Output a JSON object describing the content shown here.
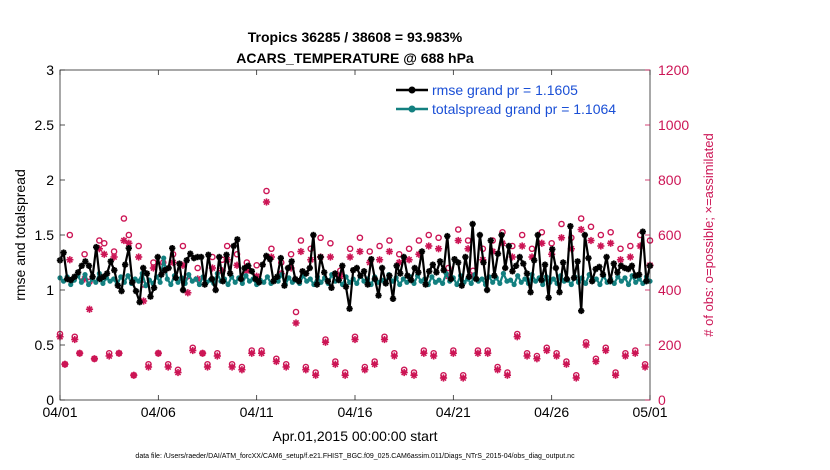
{
  "chart_data": {
    "type": "line",
    "title": "Tropics 36285 / 38608 = 93.983%",
    "subtitle": "ACARS_TEMPERATURE @ 688 hPa",
    "xlabel": "Apr.01,2015 00:00:00 start",
    "ylabel_left": "rmse and totalspread",
    "ylabel_right": "# of obs: o=possible; ×=assimilated",
    "x_range": [
      0,
      30
    ],
    "x_ticks": [
      0,
      5,
      10,
      15,
      20,
      25,
      30
    ],
    "x_tick_labels": [
      "04/01",
      "04/06",
      "04/11",
      "04/16",
      "04/21",
      "04/26",
      "05/01"
    ],
    "ylim_left": [
      0,
      3
    ],
    "y_ticks_left": [
      0,
      0.5,
      1,
      1.5,
      2,
      2.5,
      3
    ],
    "y_tick_labels_left": [
      "0",
      "0.5",
      "1",
      "1.5",
      "2",
      "2.5",
      "3"
    ],
    "ylim_right": [
      0,
      1200
    ],
    "y_ticks_right": [
      0,
      200,
      400,
      600,
      800,
      1000,
      1200
    ],
    "y_tick_labels_right": [
      "0",
      "200",
      "400",
      "600",
      "800",
      "1000",
      "1200"
    ],
    "footer": "data file: /Users/raeder/DAI/ATM_forcXX/CAM6_setup/f.e21.FHIST_BGC.f09_025.CAM6assim.011/Diags_NTrS_2015-04/obs_diag_output.nc",
    "colors": {
      "rmse": "#000000",
      "spread": "#138080",
      "obs": "#cc1555",
      "legend_text": "#1a4fd6"
    },
    "series": [
      {
        "name": "rmse grand pr = 1.1605",
        "axis": "left",
        "color": "#000000",
        "marker": "asterisk",
        "values": [
          1.27,
          1.34,
          1.1,
          1.09,
          1.12,
          1.16,
          1.22,
          1.26,
          1.22,
          1.12,
          1.39,
          1.1,
          1.12,
          1.15,
          1.26,
          1.18,
          1.04,
          0.99,
          1.23,
          1.38,
          1.07,
          0.99,
          0.89,
          1.2,
          1.15,
          0.94,
          1.02,
          1.3,
          1.14,
          1.18,
          1.2,
          1.38,
          1.11,
          1.24,
          1.0,
          1.27,
          1.33,
          1.29,
          1.3,
          1.3,
          1.05,
          1.32,
          1.1,
          1.0,
          1.3,
          1.08,
          1.32,
          1.15,
          1.4,
          1.46,
          1.1,
          1.2,
          1.22,
          1.17,
          1.1,
          1.07,
          1.23,
          1.31,
          1.28,
          1.08,
          1.12,
          1.29,
          1.04,
          1.2,
          1.26,
          1.1,
          1.08,
          1.17,
          1.15,
          1.2,
          1.5,
          1.05,
          1.3,
          1.16,
          1.08,
          1.02,
          1.15,
          1.09,
          1.22,
          1.03,
          0.83,
          1.18,
          1.2,
          1.13,
          1.17,
          1.05,
          1.28,
          1.1,
          0.95,
          1.2,
          1.06,
          1.13,
          0.92,
          1.22,
          1.15,
          1.3,
          1.13,
          1.09,
          1.2,
          1.16,
          1.35,
          1.05,
          1.17,
          1.23,
          1.16,
          1.26,
          1.18,
          1.49,
          1.1,
          1.28,
          1.25,
          1.04,
          1.3,
          1.12,
          1.6,
          1.1,
          1.5,
          1.25,
          1.0,
          1.45,
          1.13,
          1.33,
          1.5,
          1.2,
          1.4,
          1.17,
          1.22,
          1.3,
          1.24,
          1.15,
          0.98,
          1.27,
          1.5,
          1.09,
          1.23,
          0.93,
          1.37,
          1.2,
          0.98,
          1.25,
          1.1,
          1.58,
          1.11,
          1.26,
          0.81,
          1.5,
          1.29,
          1.08,
          1.19,
          1.21,
          1.14,
          1.3,
          1.08,
          1.24,
          1.16,
          1.22,
          1.2,
          1.19,
          1.22,
          1.13,
          1.14,
          1.53,
          1.08,
          1.22
        ]
      },
      {
        "name": "totalspread grand pr = 1.1064",
        "axis": "left",
        "color": "#138080",
        "marker": "dot",
        "values": [
          1.11,
          1.08,
          1.12,
          1.05,
          1.09,
          1.13,
          1.07,
          1.14,
          1.05,
          1.1,
          1.07,
          1.15,
          1.06,
          1.11,
          1.08,
          1.1,
          1.05,
          1.12,
          1.07,
          1.13,
          1.06,
          1.1,
          1.08,
          1.15,
          1.04,
          1.09,
          1.06,
          1.12,
          1.07,
          1.29,
          1.1,
          1.05,
          1.13,
          1.07,
          1.11,
          1.06,
          1.14,
          1.08,
          1.1,
          1.05,
          1.12,
          1.07,
          1.09,
          1.06,
          1.15,
          1.08,
          1.1,
          1.05,
          1.12,
          1.07,
          1.11,
          1.06,
          1.13,
          1.08,
          1.1,
          1.05,
          1.09,
          1.07,
          1.12,
          1.06,
          1.1,
          1.08,
          1.14,
          1.05,
          1.11,
          1.07,
          1.09,
          1.06,
          1.13,
          1.08,
          1.1,
          1.05,
          1.12,
          1.07,
          1.11,
          1.06,
          1.14,
          1.08,
          1.09,
          1.05,
          1.12,
          1.07,
          1.1,
          1.06,
          1.13,
          1.08,
          1.1,
          1.05,
          1.12,
          1.07,
          1.09,
          1.06,
          1.14,
          1.08,
          1.11,
          1.05,
          1.1,
          1.07,
          1.12,
          1.06,
          1.13,
          1.08,
          1.1,
          1.05,
          1.12,
          1.07,
          1.09,
          1.06,
          1.15,
          1.08,
          1.11,
          1.05,
          1.13,
          1.07,
          1.1,
          1.06,
          1.14,
          1.08,
          1.1,
          1.05,
          1.12,
          1.07,
          1.11,
          1.06,
          1.15,
          1.08,
          1.09,
          1.05,
          1.13,
          1.07,
          1.1,
          1.06,
          1.14,
          1.08,
          1.11,
          1.05,
          1.12,
          1.07,
          1.1,
          1.06,
          1.13,
          1.08,
          1.09,
          1.05,
          1.12,
          1.07,
          1.11,
          1.06,
          1.14,
          1.08,
          1.1,
          1.05,
          1.13,
          1.07,
          1.1,
          1.06,
          1.12,
          1.08,
          1.11,
          1.05,
          1.13,
          1.07,
          1.1,
          1.06,
          1.12,
          1.08
        ]
      },
      {
        "name": "obs possible",
        "axis": "right",
        "color": "#cc1555",
        "marker": "circle",
        "x": [
          0,
          0.25,
          0.5,
          0.75,
          1,
          1.25,
          1.5,
          1.75,
          2,
          2.25,
          2.5,
          2.75,
          3,
          3.25,
          3.5,
          3.75,
          4,
          4.25,
          4.5,
          4.75,
          5,
          5.25,
          5.5,
          5.75,
          6,
          6.25,
          6.5,
          6.75,
          7,
          7.25,
          7.5,
          7.75,
          8,
          8.25,
          8.5,
          8.75,
          9,
          9.25,
          9.5,
          9.75,
          10,
          10.25,
          10.5,
          10.75,
          11,
          11.25,
          11.5,
          11.75,
          12,
          12.25,
          12.5,
          12.75,
          13,
          13.25,
          13.5,
          13.75,
          14,
          14.25,
          14.5,
          14.75,
          15,
          15.25,
          15.5,
          15.75,
          16,
          16.25,
          16.5,
          16.75,
          17,
          17.25,
          17.5,
          17.75,
          18,
          18.25,
          18.5,
          18.75,
          19,
          19.25,
          19.5,
          19.75,
          20,
          20.25,
          20.5,
          20.75,
          21,
          21.25,
          21.5,
          21.75,
          22,
          22.25,
          22.5,
          22.75,
          23,
          23.25,
          23.5,
          23.75,
          24,
          24.25,
          24.5,
          24.75,
          25,
          25.25,
          25.5,
          25.75,
          26,
          26.25,
          26.5,
          26.75,
          27,
          27.25,
          27.5,
          27.75,
          28,
          28.25,
          28.5,
          28.75,
          29,
          29.25,
          29.5,
          29.75,
          30
        ],
        "values": [
          240,
          130,
          600,
          230,
          170,
          530,
          430,
          150,
          580,
          570,
          170,
          540,
          170,
          660,
          600,
          90,
          560,
          420,
          130,
          500,
          170,
          500,
          130,
          530,
          110,
          560,
          450,
          190,
          480,
          170,
          130,
          520,
          170,
          510,
          560,
          130,
          530,
          120,
          500,
          180,
          490,
          180,
          760,
          550,
          150,
          500,
          130,
          530,
          320,
          580,
          120,
          550,
          100,
          590,
          220,
          570,
          140,
          470,
          100,
          550,
          230,
          590,
          120,
          540,
          140,
          560,
          230,
          580,
          170,
          530,
          110,
          550,
          100,
          580,
          180,
          600,
          170,
          590,
          90,
          480,
          180,
          620,
          90,
          580,
          470,
          180,
          550,
          180,
          580,
          120,
          610,
          100,
          560,
          240,
          600,
          170,
          550,
          160,
          610,
          190,
          570,
          170,
          640,
          140,
          590,
          90,
          660,
          210,
          630,
          150,
          600,
          190,
          610,
          100,
          550,
          170,
          560,
          180,
          600,
          130,
          580
        ]
      },
      {
        "name": "obs assimilated",
        "axis": "right",
        "color": "#cc1555",
        "marker": "asterisk",
        "x": [
          0,
          0.25,
          0.5,
          0.75,
          1,
          1.25,
          1.5,
          1.75,
          2,
          2.25,
          2.5,
          2.75,
          3,
          3.25,
          3.5,
          3.75,
          4,
          4.25,
          4.5,
          4.75,
          5,
          5.25,
          5.5,
          5.75,
          6,
          6.25,
          6.5,
          6.75,
          7,
          7.25,
          7.5,
          7.75,
          8,
          8.25,
          8.5,
          8.75,
          9,
          9.25,
          9.5,
          9.75,
          10,
          10.25,
          10.5,
          10.75,
          11,
          11.25,
          11.5,
          11.75,
          12,
          12.25,
          12.5,
          12.75,
          13,
          13.25,
          13.5,
          13.75,
          14,
          14.25,
          14.5,
          14.75,
          15,
          15.25,
          15.5,
          15.75,
          16,
          16.25,
          16.5,
          16.75,
          17,
          17.25,
          17.5,
          17.75,
          18,
          18.25,
          18.5,
          18.75,
          19,
          19.25,
          19.5,
          19.75,
          20,
          20.25,
          20.5,
          20.75,
          21,
          21.25,
          21.5,
          21.75,
          22,
          22.25,
          22.5,
          22.75,
          23,
          23.25,
          23.5,
          23.75,
          24,
          24.25,
          24.5,
          24.75,
          25,
          25.25,
          25.5,
          25.75,
          26,
          26.25,
          26.5,
          26.75,
          27,
          27.25,
          27.5,
          27.75,
          28,
          28.25,
          28.5,
          28.75,
          29,
          29.25,
          29.5,
          29.75,
          30
        ],
        "values": [
          230,
          130,
          510,
          220,
          170,
          440,
          330,
          150,
          550,
          530,
          160,
          520,
          170,
          580,
          570,
          90,
          520,
          360,
          120,
          480,
          170,
          470,
          120,
          500,
          100,
          490,
          390,
          180,
          440,
          170,
          120,
          480,
          160,
          470,
          510,
          120,
          490,
          110,
          470,
          170,
          450,
          170,
          720,
          520,
          140,
          460,
          120,
          480,
          280,
          540,
          110,
          510,
          90,
          520,
          210,
          520,
          130,
          450,
          90,
          520,
          220,
          540,
          110,
          500,
          130,
          510,
          220,
          540,
          160,
          500,
          100,
          510,
          90,
          530,
          170,
          560,
          160,
          550,
          80,
          450,
          170,
          580,
          80,
          550,
          450,
          170,
          510,
          170,
          540,
          110,
          570,
          90,
          520,
          230,
          560,
          160,
          520,
          150,
          570,
          180,
          530,
          160,
          590,
          130,
          550,
          80,
          620,
          200,
          580,
          140,
          560,
          180,
          570,
          90,
          510,
          160,
          520,
          170,
          560,
          120,
          490
        ]
      }
    ]
  }
}
